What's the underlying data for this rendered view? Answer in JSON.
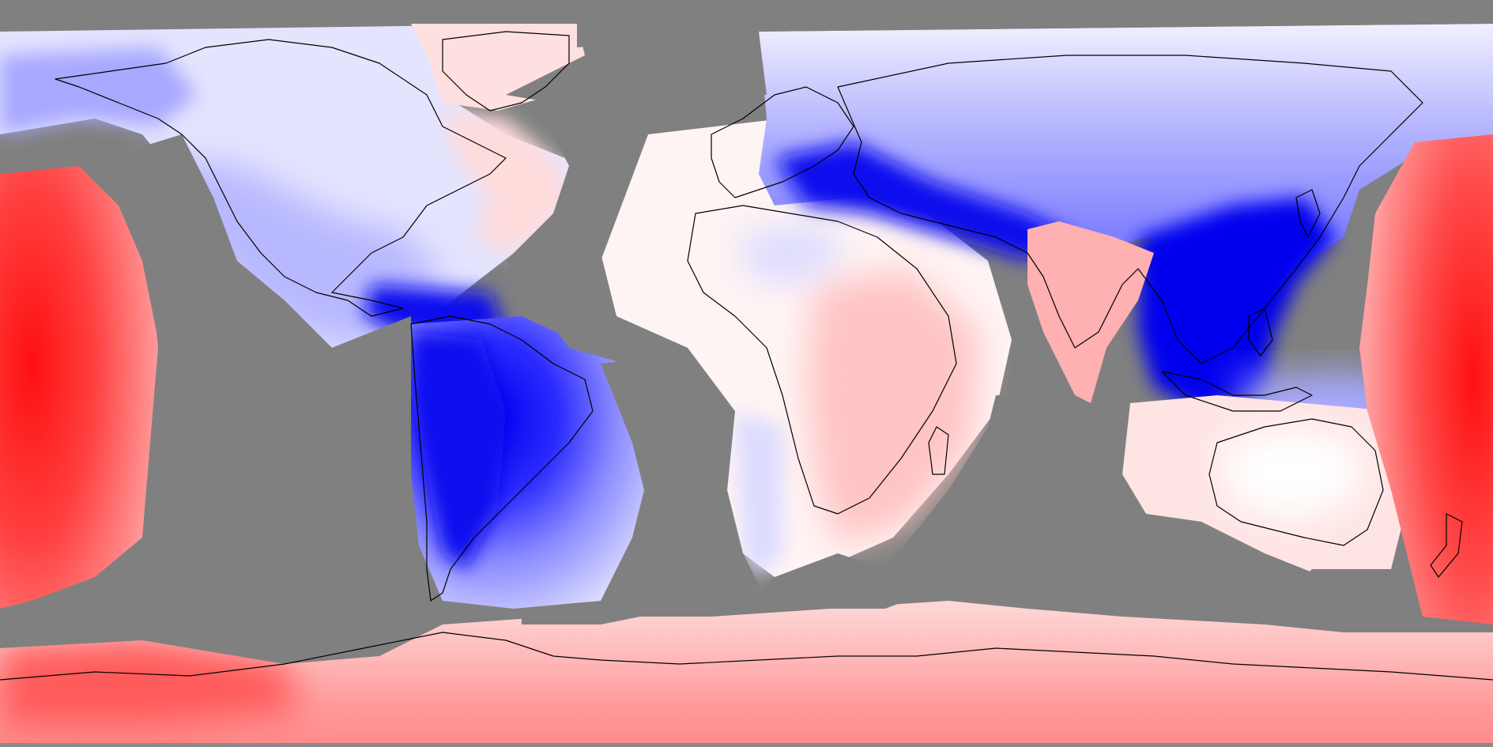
{
  "map": {
    "projection": "equirectangular",
    "colors": {
      "no_data": "#808080",
      "strong_negative": "#0000ee",
      "neutral": "#ffffff",
      "strong_positive": "#ff0000",
      "coastline": "#000000"
    },
    "regions": [
      {
        "name": "south-america-negative-core",
        "sign": "negative",
        "level": 0.95
      },
      {
        "name": "caribbean-negative-core",
        "sign": "negative",
        "level": 0.9
      },
      {
        "name": "mediterranean-asia-negative-band",
        "sign": "negative",
        "level": 0.85
      },
      {
        "name": "east-asia-negative-core",
        "sign": "negative",
        "level": 0.95
      },
      {
        "name": "north-america-negative",
        "sign": "negative",
        "level": 0.3
      },
      {
        "name": "north-pacific-west-positive",
        "sign": "positive",
        "level": 0.9
      },
      {
        "name": "north-pacific-east-positive",
        "sign": "positive",
        "level": 0.85
      },
      {
        "name": "india-positive",
        "sign": "positive",
        "level": 0.4
      },
      {
        "name": "africa-positive",
        "sign": "positive",
        "level": 0.3
      },
      {
        "name": "australia-neutral",
        "sign": "positive",
        "level": 0.1
      },
      {
        "name": "southern-ocean-positive",
        "sign": "positive",
        "level": 0.45
      },
      {
        "name": "greenland-positive",
        "sign": "positive",
        "level": 0.15
      }
    ]
  }
}
